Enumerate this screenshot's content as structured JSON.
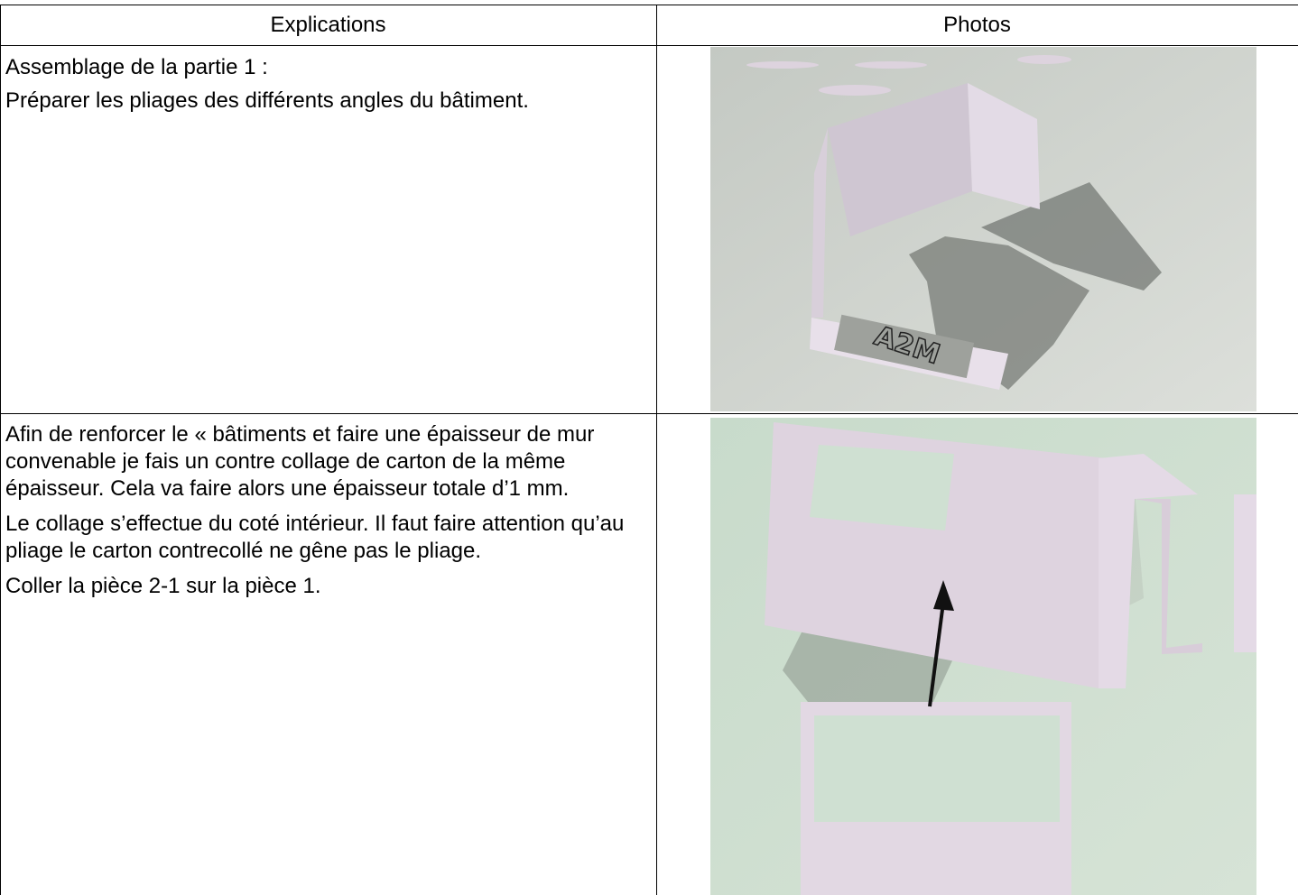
{
  "table": {
    "header": [
      "Explications",
      "Photos"
    ],
    "rows": [
      {
        "paragraphs": [
          "Assemblage de la partie 1 :",
          "Préparer les pliages des différents angles du bâtiment."
        ],
        "photo_label": "A2M"
      },
      {
        "paragraphs": [
          "Afin de renforcer le « bâtiments et faire une épaisseur de mur convenable je fais un contre collage de carton de la même épaisseur. Cela va faire alors une épaisseur totale d’1 mm.",
          "Le collage s’effectue du coté intérieur. Il faut faire attention qu’au pliage le carton contrecollé ne gêne pas le pliage.",
          "Coller la pièce 2-1 sur la pièce 1."
        ]
      }
    ]
  }
}
